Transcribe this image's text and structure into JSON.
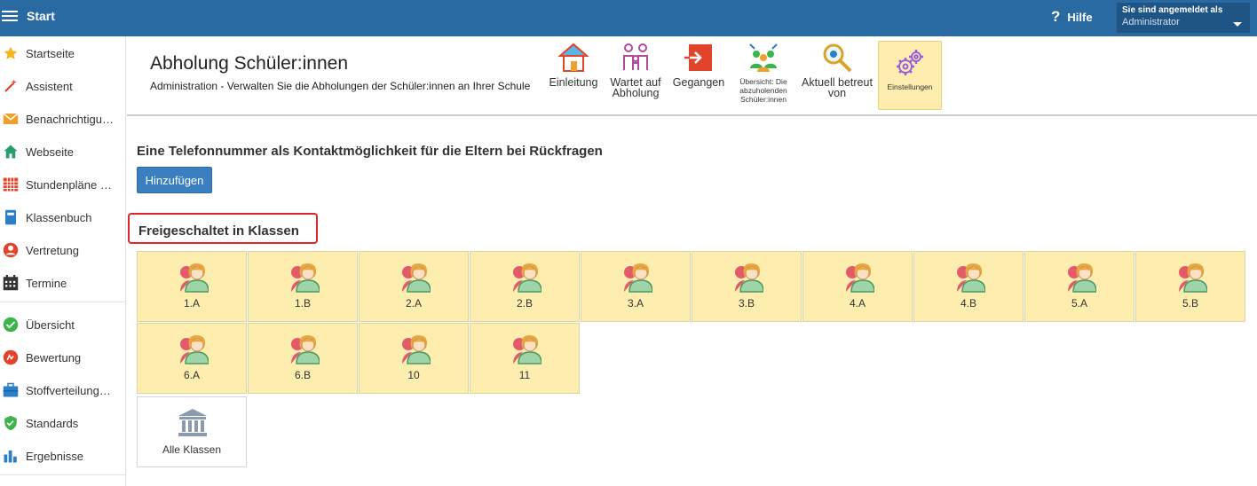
{
  "topbar": {
    "title": "Start",
    "help_label": "Hilfe",
    "help_icon_glyph": "?",
    "login_label": "Sie sind angemeldet als",
    "login_user": "Administrator"
  },
  "sidebar": {
    "items": [
      {
        "label": "Startseite",
        "icon": "star-icon",
        "color": "#f3b61f"
      },
      {
        "label": "Assistent",
        "icon": "magic-wand-icon",
        "color": "#e0452b"
      },
      {
        "label": "Benachrichtigungen",
        "icon": "envelope-icon",
        "color": "#f0a02a"
      },
      {
        "label": "Webseite",
        "icon": "house-icon",
        "color": "#2a9d6e"
      },
      {
        "label": "Stundenpläne und Klassen",
        "icon": "timetable-icon",
        "color": "#e0452b"
      },
      {
        "label": "Klassenbuch",
        "icon": "book-icon",
        "color": "#2a7fc7"
      },
      {
        "label": "Vertretung",
        "icon": "substitute-icon",
        "color": "#e0452b"
      },
      {
        "label": "Termine",
        "icon": "calendar-icon",
        "color": "#333333"
      },
      {
        "label": "Übersicht",
        "icon": "check-circle-icon",
        "color": "#3bb54a"
      },
      {
        "label": "Bewertung",
        "icon": "rating-icon",
        "color": "#e0452b"
      },
      {
        "label": "Stoffverteilungspläne",
        "icon": "briefcase-icon",
        "color": "#2a7fc7"
      },
      {
        "label": "Standards",
        "icon": "shield-check-icon",
        "color": "#3bb54a"
      },
      {
        "label": "Ergebnisse",
        "icon": "bar-chart-icon",
        "color": "#2a7fc7"
      }
    ]
  },
  "header": {
    "title": "Abholung Schüler:innen",
    "subtitle": "Administration - Verwalten Sie die Abholungen der Schüler:innen an Ihrer Schule",
    "tools": [
      {
        "label": "Einleitung",
        "icon": "house-icon"
      },
      {
        "label": "Wartet auf Abholung",
        "icon": "family-icon"
      },
      {
        "label": "Gegangen",
        "icon": "exit-icon"
      },
      {
        "label": "Übersicht: Die abzuholenden Schüler:innen",
        "icon": "group-icon"
      },
      {
        "label": "Aktuell betreut von",
        "icon": "magnifier-icon"
      },
      {
        "label": "Einstellungen",
        "icon": "gears-icon"
      }
    ]
  },
  "content": {
    "phone_section_title": "Eine Telefonnummer als Kontaktmöglichkeit für die Eltern bei Rückfragen",
    "add_button": "Hinzufügen",
    "classes_title": "Freigeschaltet in Klassen",
    "classes": [
      "1.A",
      "1.B",
      "2.A",
      "2.B",
      "3.A",
      "3.B",
      "4.A",
      "4.B",
      "5.A",
      "5.B",
      "6.A",
      "6.B",
      "10",
      "11"
    ],
    "all_classes_label": "Alle Klassen"
  },
  "colors": {
    "topbar": "#2a6aa3",
    "tile_bg": "#fdeeb0",
    "button": "#3a7fc0",
    "highlight": "#e0262b"
  }
}
